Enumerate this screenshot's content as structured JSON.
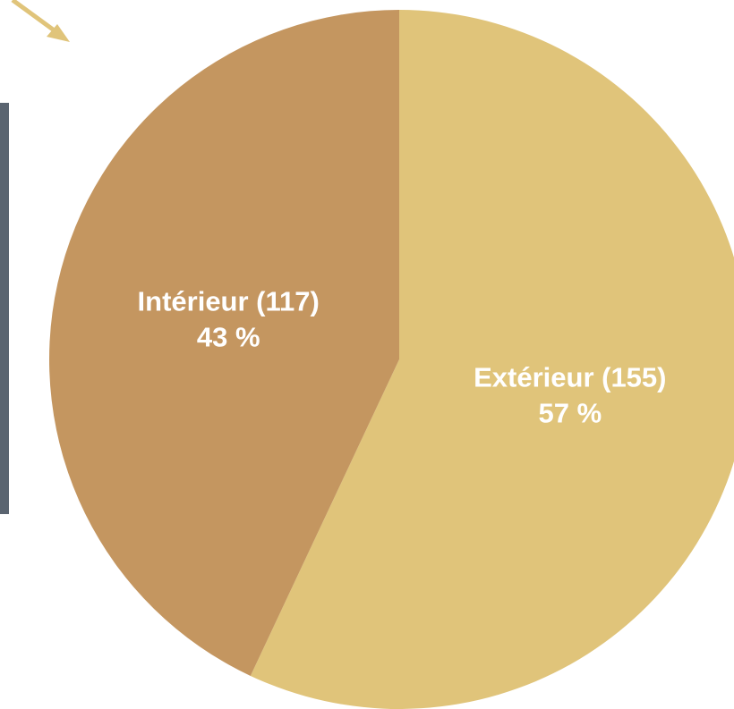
{
  "chart_data": {
    "type": "pie",
    "values": [
      155,
      117
    ],
    "value_labels": [
      "Extérieur (155)",
      "Intérieur (117)"
    ],
    "percentages": [
      57,
      43
    ],
    "percent_labels": [
      "57 %",
      "43 %"
    ],
    "colors": [
      "#e0c47a",
      "#c49660"
    ],
    "start_angle": 0,
    "direction": "clockwise"
  }
}
